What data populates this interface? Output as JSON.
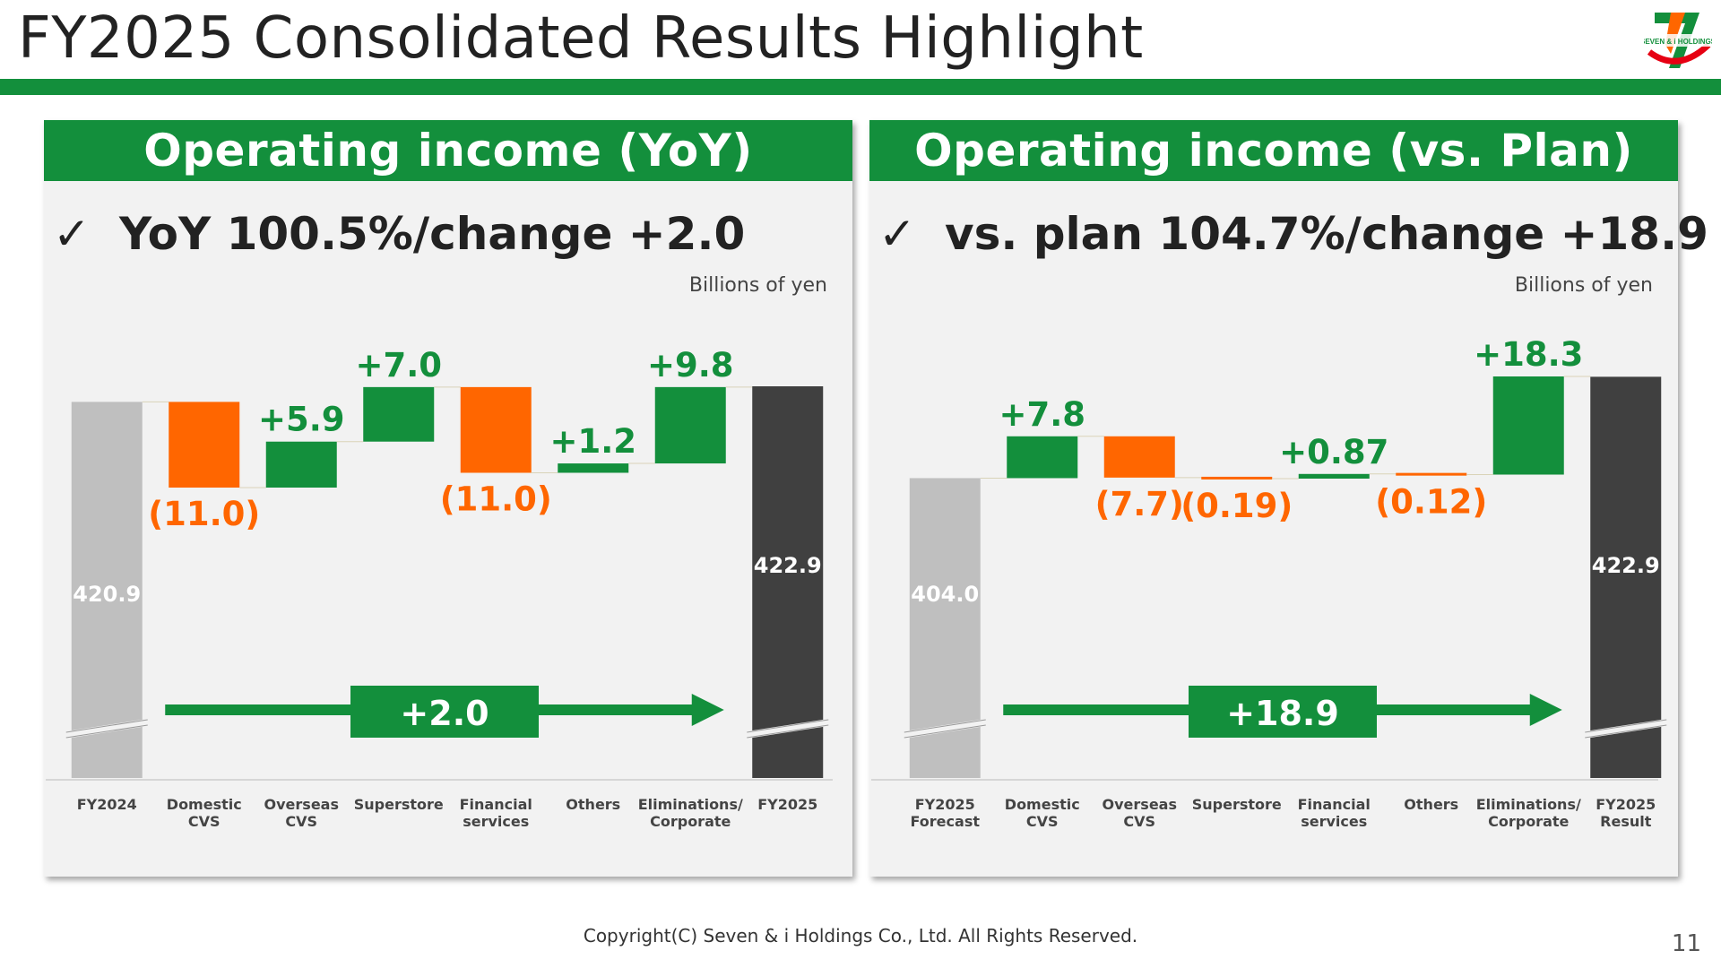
{
  "slide": {
    "title": "FY2025 Consolidated Results Highlight",
    "logo_text": "SEVEN & i HOLDINGS",
    "footer": "Copyright(C) Seven & i Holdings Co., Ltd. All Rights Reserved.",
    "page_number": "11"
  },
  "colors": {
    "increase": "#138f3c",
    "decrease": "#ff6600",
    "start_total": "#bfbfbf",
    "end_total": "#404040",
    "panel_header": "#138f3c"
  },
  "panels": [
    {
      "header": "Operating income (YoY)",
      "check": "✓",
      "headline": "YoY 100.5%/change +2.0",
      "unit": "Billions of yen",
      "change_label": "+2.0"
    },
    {
      "header": "Operating income (vs. Plan)",
      "check": "✓",
      "headline": "vs. plan 104.7%/change +18.9",
      "unit": "Billions of yen",
      "change_label": "+18.9"
    }
  ],
  "chart_data": [
    {
      "type": "waterfall",
      "title": "Operating income (YoY)",
      "unit": "Billions of yen",
      "axis_break": true,
      "categories": [
        "FY2024",
        "Domestic\nCVS",
        "Overseas\nCVS",
        "Superstore",
        "Financial\nservices",
        "Others",
        "Eliminations/\nCorporate",
        "FY2025"
      ],
      "kinds": [
        "total",
        "delta",
        "delta",
        "delta",
        "delta",
        "delta",
        "delta",
        "total"
      ],
      "values": [
        420.9,
        -11.0,
        5.9,
        7.0,
        -11.0,
        1.2,
        9.8,
        422.9
      ],
      "labels": [
        "420.9",
        "(11.0)",
        "+5.9",
        "+7.0",
        "(11.0)",
        "+1.2",
        "+9.8",
        "422.9"
      ],
      "total_change": 2.0,
      "total_change_label": "+2.0"
    },
    {
      "type": "waterfall",
      "title": "Operating income (vs. Plan)",
      "unit": "Billions of yen",
      "axis_break": true,
      "categories": [
        "FY2025\nForecast",
        "Domestic\nCVS",
        "Overseas\nCVS",
        "Superstore",
        "Financial\nservices",
        "Others",
        "Eliminations/\nCorporate",
        "FY2025\nResult"
      ],
      "kinds": [
        "total",
        "delta",
        "delta",
        "delta",
        "delta",
        "delta",
        "delta",
        "total"
      ],
      "values": [
        404.0,
        7.8,
        -7.7,
        -0.19,
        0.87,
        -0.12,
        18.3,
        422.9
      ],
      "labels": [
        "404.0",
        "+7.8",
        "(7.7)",
        "(0.19)",
        "+0.87",
        "(0.12)",
        "+18.3",
        "422.9"
      ],
      "total_change": 18.9,
      "total_change_label": "+18.9"
    }
  ]
}
